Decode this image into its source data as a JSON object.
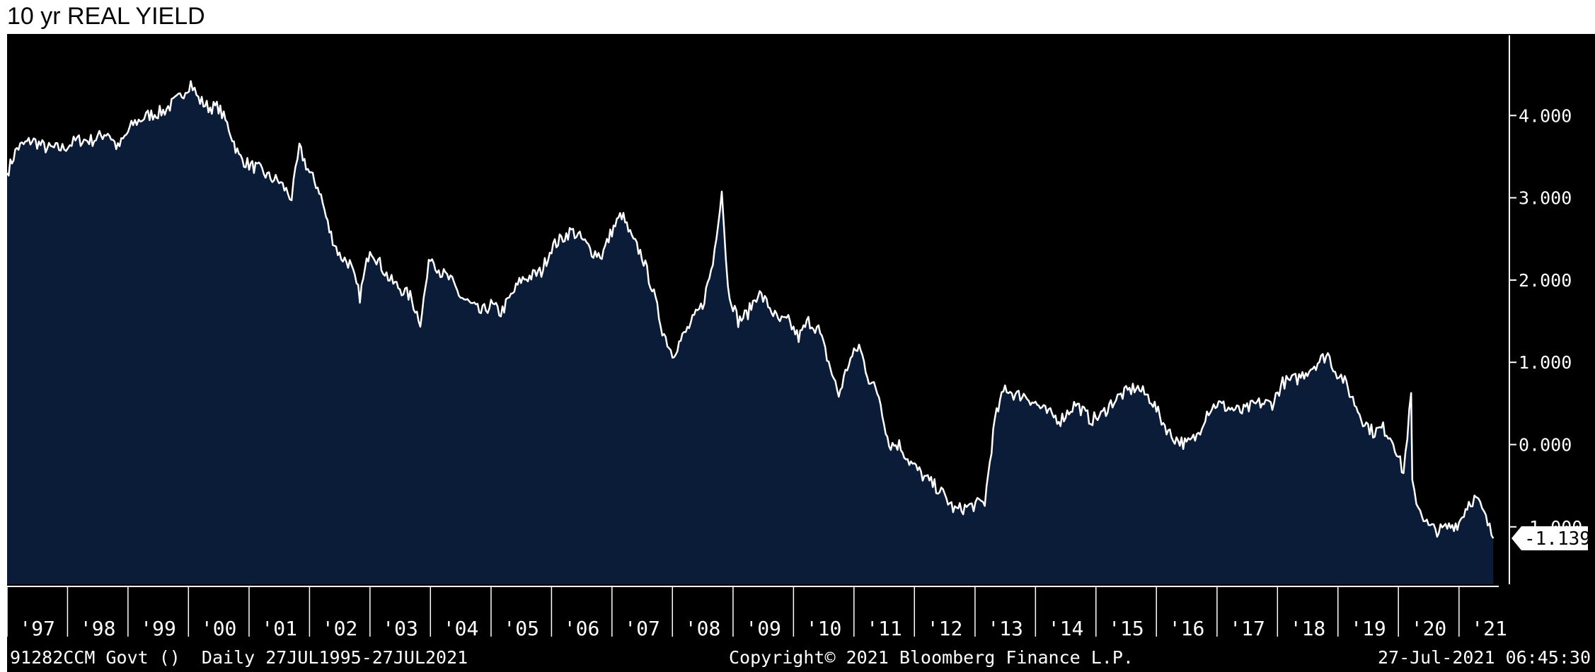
{
  "title": "10 yr REAL YIELD",
  "footer": {
    "left": "91282CCM Govt ()  Daily 27JUL1995-27JUL2021",
    "center": "Copyright© 2021 Bloomberg Finance L.P.",
    "right": "27-Jul-2021 06:45:30"
  },
  "colors": {
    "background": "#000000",
    "area_fill": "#0b1c38",
    "line": "#ffffff",
    "text": "#ffffff"
  },
  "chart_data": {
    "type": "area",
    "title": "10 yr REAL YIELD",
    "xlabel": "",
    "ylabel": "",
    "x_tick_labels": [
      "'97",
      "'98",
      "'99",
      "'00",
      "'01",
      "'02",
      "'03",
      "'04",
      "'05",
      "'06",
      "'07",
      "'08",
      "'09",
      "'10",
      "'11",
      "'12",
      "'13",
      "'14",
      "'15",
      "'16",
      "'17",
      "'18",
      "'19",
      "'20",
      "'21"
    ],
    "y_tick_labels": [
      "-1.000",
      "0.000",
      "1.000",
      "2.000",
      "3.000",
      "4.000"
    ],
    "y_ticks": [
      -1,
      0,
      1,
      2,
      3,
      4
    ],
    "ylim": [
      -1.7,
      5.0
    ],
    "xlim": [
      "1997-01-01",
      "2021-09-15"
    ],
    "last_value_label": "-1.139",
    "grid": false,
    "axis_position": "right",
    "series": [
      {
        "x": [
          "1997-01-01",
          "1997-03-01",
          "1997-06-01",
          "1997-09-01",
          "1997-12-01",
          "1998-03-01",
          "1998-06-01",
          "1998-09-01",
          "1998-11-01",
          "1999-02-01",
          "1999-05-01",
          "1999-08-01",
          "1999-11-01",
          "2000-01-15",
          "2000-03-01",
          "2000-05-01",
          "2000-07-01",
          "2000-09-01",
          "2000-11-01",
          "2001-01-01",
          "2001-03-01",
          "2001-05-01",
          "2001-07-01",
          "2001-09-15",
          "2001-11-01",
          "2002-01-01",
          "2002-03-01",
          "2002-05-01",
          "2002-07-01",
          "2002-09-01",
          "2002-11-01",
          "2003-01-01",
          "2003-03-01",
          "2003-05-01",
          "2003-07-01",
          "2003-09-01",
          "2003-11-01",
          "2004-01-01",
          "2004-03-01",
          "2004-05-01",
          "2004-07-01",
          "2004-09-01",
          "2004-11-01",
          "2005-01-01",
          "2005-03-01",
          "2005-05-01",
          "2005-07-01",
          "2005-09-01",
          "2005-11-01",
          "2006-01-01",
          "2006-03-01",
          "2006-05-01",
          "2006-07-01",
          "2006-09-01",
          "2006-11-01",
          "2007-01-01",
          "2007-03-01",
          "2007-05-01",
          "2007-07-01",
          "2007-09-01",
          "2007-11-01",
          "2008-01-01",
          "2008-03-01",
          "2008-05-01",
          "2008-07-01",
          "2008-09-01",
          "2008-10-25",
          "2008-12-01",
          "2009-02-01",
          "2009-04-01",
          "2009-06-01",
          "2009-08-01",
          "2009-10-01",
          "2009-12-01",
          "2010-02-01",
          "2010-04-01",
          "2010-06-01",
          "2010-08-01",
          "2010-10-01",
          "2010-12-01",
          "2011-02-01",
          "2011-04-01",
          "2011-06-01",
          "2011-08-01",
          "2011-10-01",
          "2011-12-01",
          "2012-03-01",
          "2012-06-01",
          "2012-09-01",
          "2012-12-01",
          "2013-03-01",
          "2013-05-01",
          "2013-07-01",
          "2013-09-01",
          "2013-11-01",
          "2014-01-01",
          "2014-03-01",
          "2014-06-01",
          "2014-09-01",
          "2014-12-01",
          "2015-02-01",
          "2015-04-01",
          "2015-06-01",
          "2015-09-01",
          "2015-12-01",
          "2016-02-01",
          "2016-04-01",
          "2016-07-01",
          "2016-09-01",
          "2016-11-01",
          "2017-01-01",
          "2017-03-01",
          "2017-06-01",
          "2017-09-01",
          "2017-12-01",
          "2018-02-01",
          "2018-05-01",
          "2018-08-01",
          "2018-11-01",
          "2018-12-15",
          "2019-02-01",
          "2019-04-01",
          "2019-06-01",
          "2019-08-01",
          "2019-10-01",
          "2019-12-01",
          "2020-02-01",
          "2020-03-18",
          "2020-03-25",
          "2020-05-01",
          "2020-07-01",
          "2020-09-01",
          "2020-11-01",
          "2021-01-01",
          "2021-03-01",
          "2021-04-15",
          "2021-06-01",
          "2021-07-27"
        ],
        "y": [
          3.3,
          3.6,
          3.7,
          3.6,
          3.6,
          3.7,
          3.7,
          3.8,
          3.6,
          3.9,
          4.0,
          4.05,
          4.2,
          4.4,
          4.2,
          4.1,
          4.1,
          3.85,
          3.5,
          3.4,
          3.35,
          3.25,
          3.2,
          3.0,
          3.6,
          3.3,
          3.1,
          2.6,
          2.3,
          2.2,
          1.8,
          2.4,
          2.2,
          2.0,
          1.9,
          1.8,
          1.5,
          2.3,
          2.1,
          2.0,
          1.8,
          1.7,
          1.6,
          1.7,
          1.6,
          1.8,
          2.0,
          2.05,
          2.1,
          2.4,
          2.5,
          2.6,
          2.5,
          2.35,
          2.3,
          2.6,
          2.8,
          2.5,
          2.3,
          1.9,
          1.4,
          1.1,
          1.3,
          1.5,
          1.7,
          2.2,
          3.1,
          1.9,
          1.5,
          1.6,
          1.85,
          1.7,
          1.5,
          1.5,
          1.3,
          1.5,
          1.4,
          1.0,
          0.6,
          1.0,
          1.2,
          0.8,
          0.6,
          0.0,
          0.0,
          -0.2,
          -0.4,
          -0.55,
          -0.8,
          -0.75,
          -0.7,
          0.3,
          0.7,
          0.6,
          0.6,
          0.5,
          0.4,
          0.3,
          0.5,
          0.3,
          0.35,
          0.5,
          0.6,
          0.7,
          0.55,
          0.3,
          0.1,
          0.0,
          0.1,
          0.4,
          0.5,
          0.45,
          0.4,
          0.5,
          0.5,
          0.75,
          0.8,
          0.95,
          1.1,
          0.9,
          0.8,
          0.55,
          0.3,
          0.15,
          0.2,
          0.05,
          -0.35,
          0.6,
          -0.5,
          -0.75,
          -1.0,
          -1.05,
          -1.0,
          -0.95,
          -0.7,
          -0.65,
          -0.85,
          -1.139
        ]
      }
    ]
  }
}
